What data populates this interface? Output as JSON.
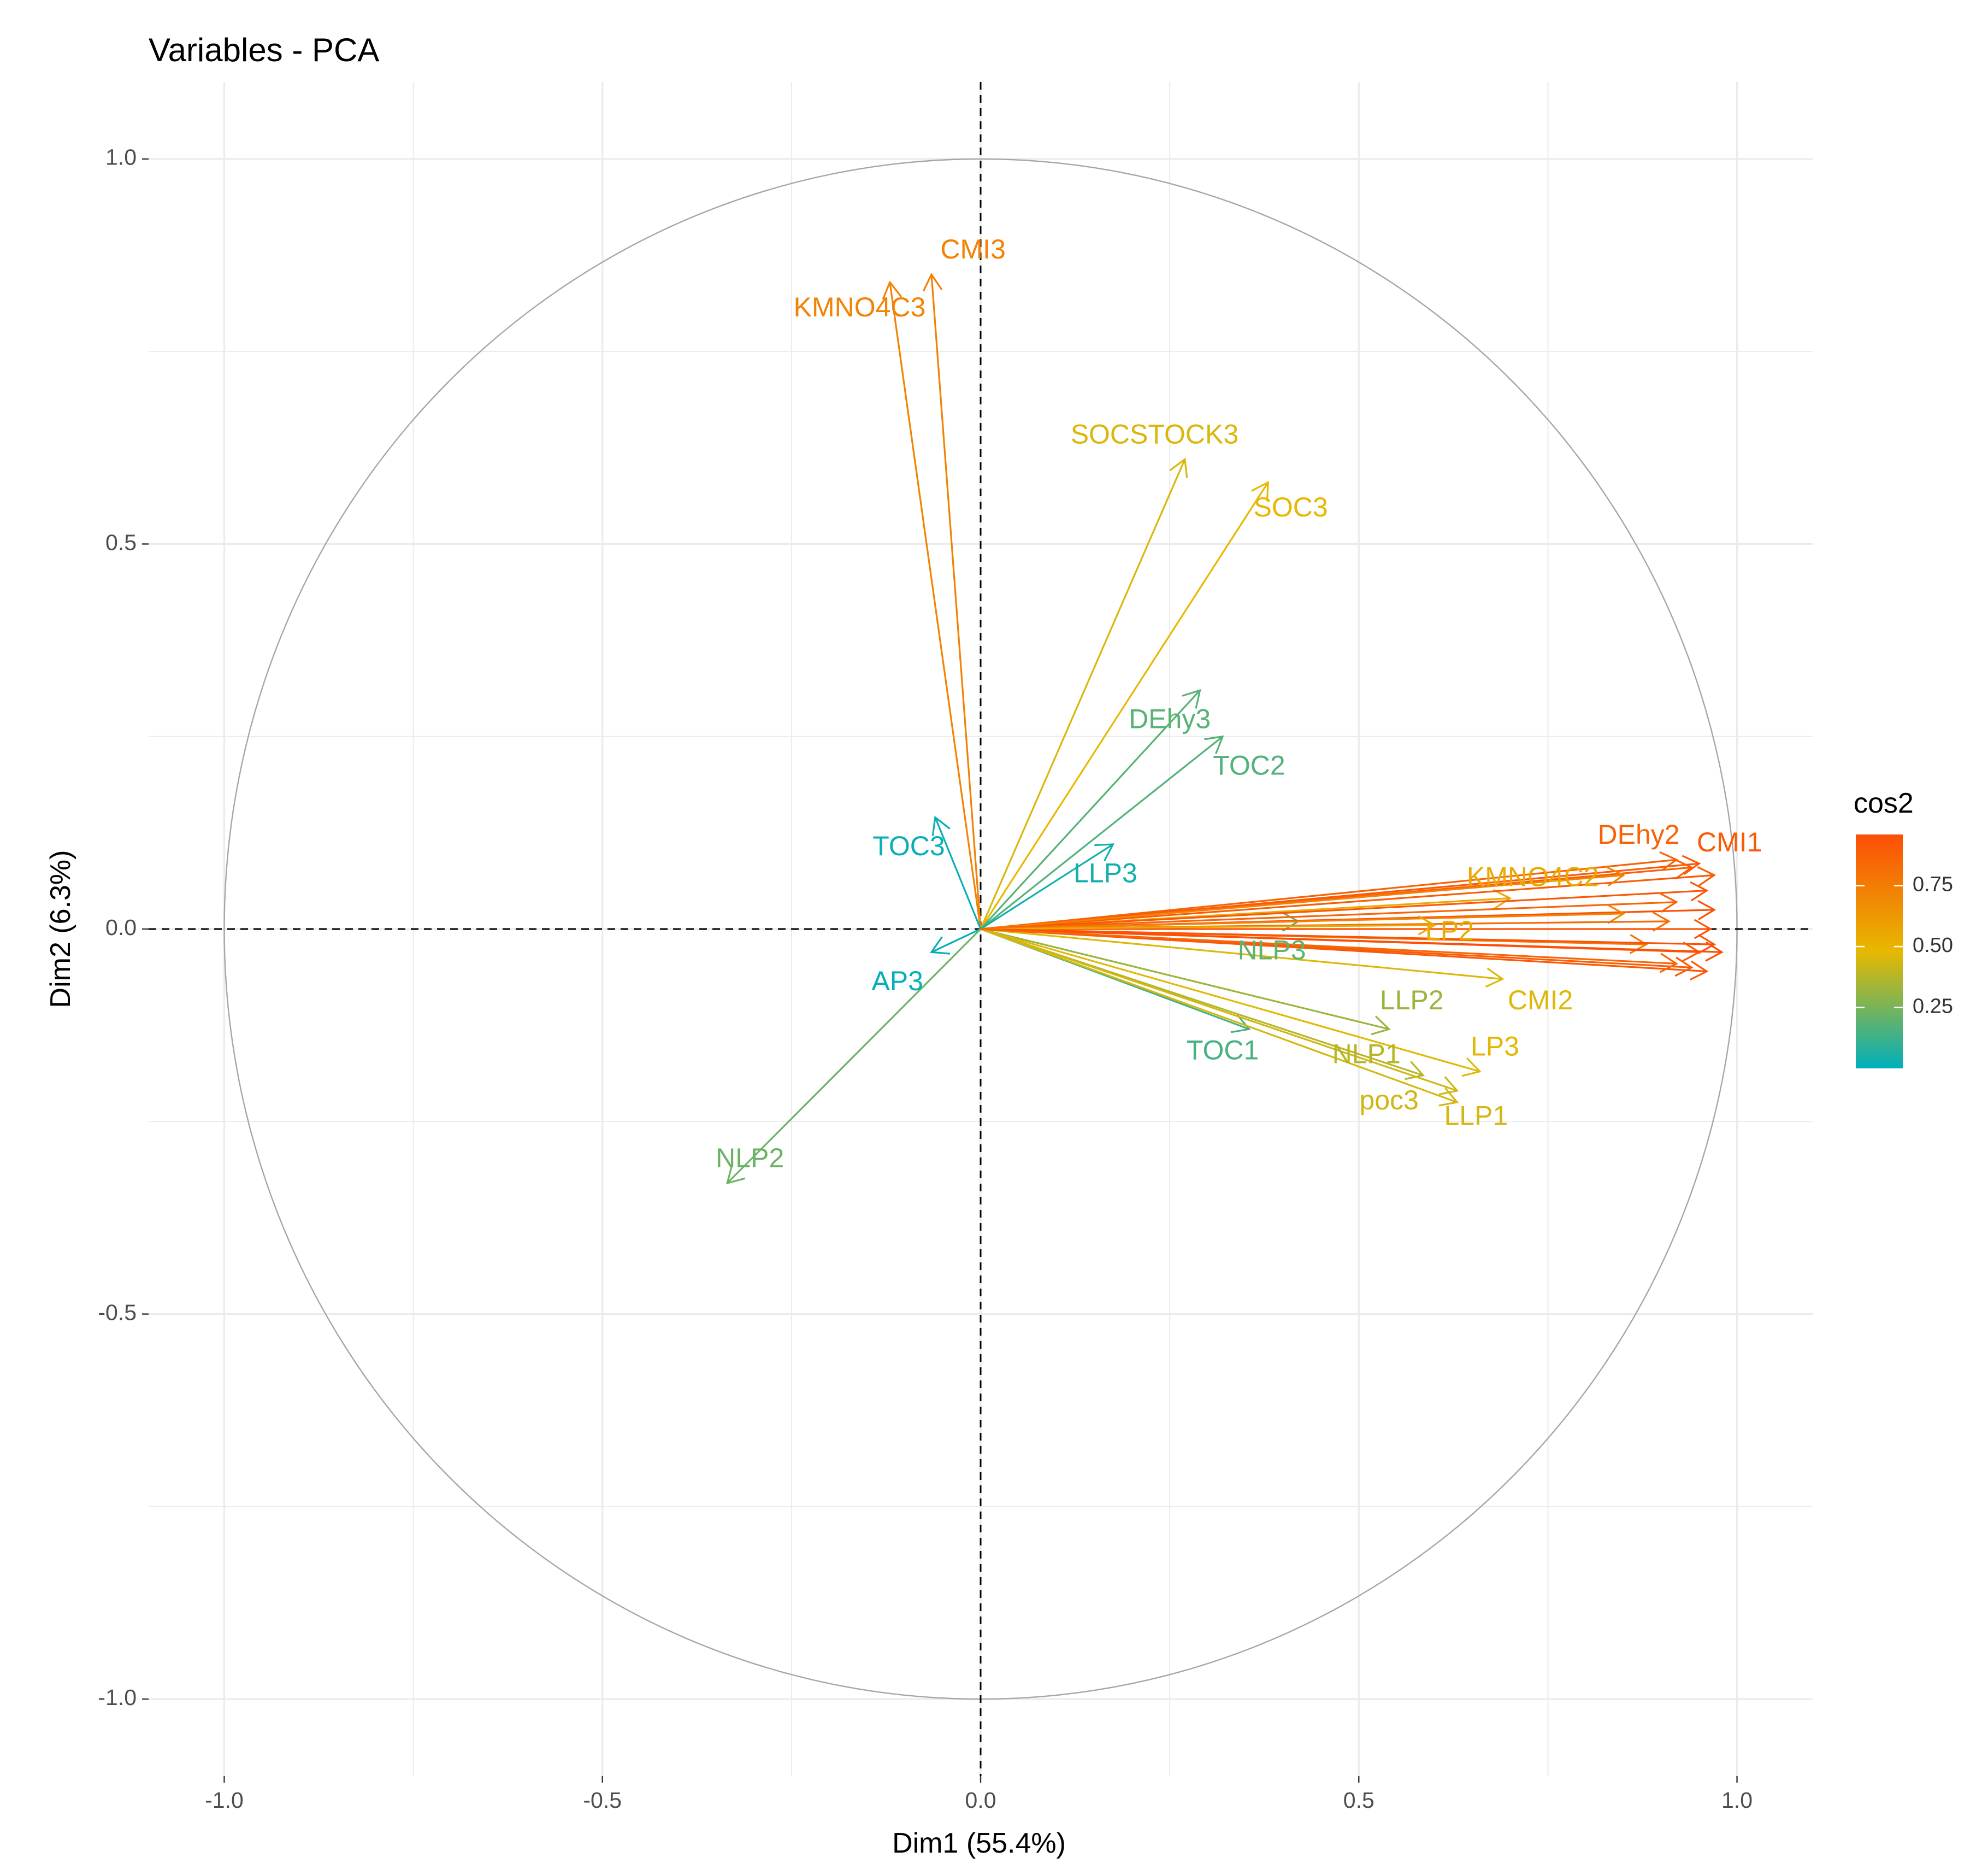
{
  "title": "Variables - PCA",
  "chart_data": {
    "type": "scatter",
    "subtype": "pca-variable-correlation-circle",
    "title": "Variables - PCA",
    "xlabel": "Dim1 (55.4%)",
    "ylabel": "Dim2 (6.3%)",
    "xlim": [
      -1.1,
      1.1
    ],
    "ylim": [
      -1.1,
      1.1
    ],
    "xticks": [
      -1.0,
      -0.5,
      0.0,
      0.5,
      1.0
    ],
    "xtick_labels": [
      "-1.0",
      "-0.5",
      "0.0",
      "0.5",
      "1.0"
    ],
    "yticks": [
      -1.0,
      -0.5,
      0.0,
      0.5,
      1.0
    ],
    "ytick_labels": [
      "-1.0",
      "-0.5",
      "0.0",
      "0.5",
      "1.0"
    ],
    "grid": true,
    "unit_circle": true,
    "reference_lines": "dashed lines at x = 0 and y = 0",
    "color_scale": {
      "title": "cos2",
      "ticks": [
        0.25,
        0.5,
        0.75
      ],
      "tick_labels": [
        "0.25",
        "0.50",
        "0.75"
      ],
      "range": [
        0.0,
        0.96
      ],
      "colors": [
        "#00AFBB",
        "#E7B800",
        "#FC4E07"
      ],
      "legend_placement": "right"
    },
    "variables": [
      {
        "name": "CMI3",
        "x": -0.065,
        "y": 0.85,
        "cos2": 0.73,
        "label_x": -0.01,
        "label_y": 0.88
      },
      {
        "name": "KMNO4C3",
        "x": -0.12,
        "y": 0.84,
        "cos2": 0.72,
        "label_x": -0.16,
        "label_y": 0.805
      },
      {
        "name": "SOCSTOCK3",
        "x": 0.27,
        "y": 0.61,
        "cos2": 0.45,
        "label_x": 0.23,
        "label_y": 0.64
      },
      {
        "name": "SOC3",
        "x": 0.38,
        "y": 0.58,
        "cos2": 0.48,
        "label_x": 0.41,
        "label_y": 0.545
      },
      {
        "name": "DEhy3",
        "x": 0.29,
        "y": 0.31,
        "cos2": 0.18,
        "label_x": 0.25,
        "label_y": 0.27
      },
      {
        "name": "TOC2",
        "x": 0.32,
        "y": 0.25,
        "cos2": 0.17,
        "label_x": 0.355,
        "label_y": 0.21
      },
      {
        "name": "TOC3",
        "x": -0.06,
        "y": 0.145,
        "cos2": 0.02,
        "label_x": -0.095,
        "label_y": 0.105
      },
      {
        "name": "LLP3",
        "x": 0.175,
        "y": 0.11,
        "cos2": 0.04,
        "label_x": 0.165,
        "label_y": 0.07
      },
      {
        "name": "AP3",
        "x": -0.065,
        "y": -0.03,
        "cos2": 0.01,
        "label_x": -0.11,
        "label_y": -0.07
      },
      {
        "name": "NLP2",
        "x": -0.335,
        "y": -0.33,
        "cos2": 0.22,
        "label_x": -0.305,
        "label_y": -0.3
      },
      {
        "name": "NLP3",
        "x": 0.42,
        "y": 0.01,
        "cos2": 0.2,
        "label_x": 0.385,
        "label_y": -0.03
      },
      {
        "name": "TOC1",
        "x": 0.355,
        "y": -0.13,
        "cos2": 0.15,
        "label_x": 0.32,
        "label_y": -0.16
      },
      {
        "name": "LLP2",
        "x": 0.54,
        "y": -0.13,
        "cos2": 0.32,
        "label_x": 0.57,
        "label_y": -0.095
      },
      {
        "name": "CMI2",
        "x": 0.69,
        "y": -0.065,
        "cos2": 0.46,
        "label_x": 0.74,
        "label_y": -0.095
      },
      {
        "name": "LP3",
        "x": 0.66,
        "y": -0.185,
        "cos2": 0.47,
        "label_x": 0.68,
        "label_y": -0.155
      },
      {
        "name": "NLP1",
        "x": 0.585,
        "y": -0.19,
        "cos2": 0.38,
        "label_x": 0.51,
        "label_y": -0.165
      },
      {
        "name": "poc3",
        "x": 0.63,
        "y": -0.21,
        "cos2": 0.43,
        "label_x": 0.54,
        "label_y": -0.225
      },
      {
        "name": "LLP1",
        "x": 0.63,
        "y": -0.225,
        "cos2": 0.44,
        "label_x": 0.655,
        "label_y": -0.245
      },
      {
        "name": "KMNO4C2",
        "x": 0.7,
        "y": 0.04,
        "cos2": 0.55,
        "label_x": 0.73,
        "label_y": 0.065
      },
      {
        "name": "DEhy2",
        "x": 0.92,
        "y": 0.09,
        "cos2": 0.87,
        "label_x": 0.87,
        "label_y": 0.12
      },
      {
        "name": "CMI1",
        "x": 0.95,
        "y": 0.085,
        "cos2": 0.91,
        "label_x": 0.99,
        "label_y": 0.11
      },
      {
        "name": "",
        "x": 0.94,
        "y": 0.08,
        "cos2": 0.88
      },
      {
        "name": "",
        "x": 0.97,
        "y": 0.07,
        "cos2": 0.9
      },
      {
        "name": "",
        "x": 0.85,
        "y": 0.07,
        "cos2": 0.73
      },
      {
        "name": "",
        "x": 0.96,
        "y": 0.05,
        "cos2": 0.92
      },
      {
        "name": "",
        "x": 0.97,
        "y": 0.025,
        "cos2": 0.94
      },
      {
        "name": "",
        "x": 0.92,
        "y": 0.035,
        "cos2": 0.86
      },
      {
        "name": "",
        "x": 0.85,
        "y": 0.02,
        "cos2": 0.73
      },
      {
        "name": "",
        "x": 0.965,
        "y": 0.0,
        "cos2": 0.93
      },
      {
        "name": "",
        "x": 0.91,
        "y": 0.01,
        "cos2": 0.83
      },
      {
        "name": "",
        "x": 0.6,
        "y": 0.005,
        "cos2": 0.55
      },
      {
        "name": "",
        "x": 0.88,
        "y": -0.02,
        "cos2": 0.78
      },
      {
        "name": "",
        "x": 0.97,
        "y": -0.02,
        "cos2": 0.94
      },
      {
        "name": "",
        "x": 0.95,
        "y": -0.03,
        "cos2": 0.91
      },
      {
        "name": "",
        "x": 0.98,
        "y": -0.03,
        "cos2": 0.96
      },
      {
        "name": "",
        "x": 0.94,
        "y": -0.05,
        "cos2": 0.89
      },
      {
        "name": "",
        "x": 0.96,
        "y": -0.055,
        "cos2": 0.92
      },
      {
        "name": "",
        "x": 0.92,
        "y": -0.045,
        "cos2": 0.85
      }
    ],
    "obscured_labels": [
      {
        "text": "LP2",
        "x": 0.62,
        "y": -0.005,
        "cos2": 0.55
      }
    ]
  }
}
